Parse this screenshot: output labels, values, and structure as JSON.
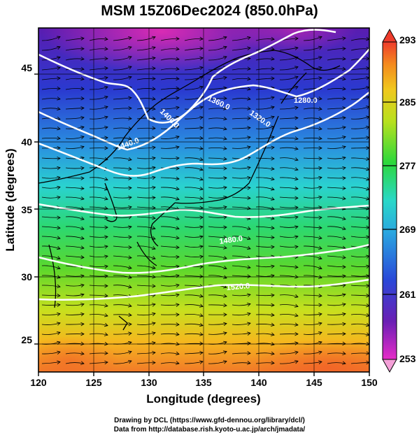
{
  "title": "MSM 15Z06Dec2024 (850.0hPa)",
  "xlabel": "Longitude (degrees)",
  "ylabel": "Latitude  (degrees)",
  "x_ticks": [
    "120",
    "125",
    "130",
    "135",
    "140",
    "145",
    "150"
  ],
  "y_ticks": [
    "25",
    "30",
    "35",
    "40",
    "45"
  ],
  "colorbar": {
    "min": 253,
    "max": 293,
    "tick_labels": [
      "293",
      "285",
      "277",
      "269",
      "261",
      "253"
    ]
  },
  "contour_labels": [
    "1280.0",
    "1320.0",
    "1360.0",
    "1400.0",
    "1440.0",
    "1480.0",
    "1520.0"
  ],
  "credits": {
    "line1": "Drawing by DCL (https://www.gfd-dennou.org/library/dcl/)",
    "line2": "Data from http://database.rish.kyoto-u.ac.jp/arch/jmadata/"
  },
  "colors": {
    "cold": "#d21fa0",
    "purple": "#6a1fb4",
    "blue": "#2a48d8",
    "cyan": "#2ad2d8",
    "green": "#2cd83c",
    "yellow": "#d8e01e",
    "orange": "#f49a1e",
    "warm": "#f24a32",
    "contour": "#ffffff"
  }
}
